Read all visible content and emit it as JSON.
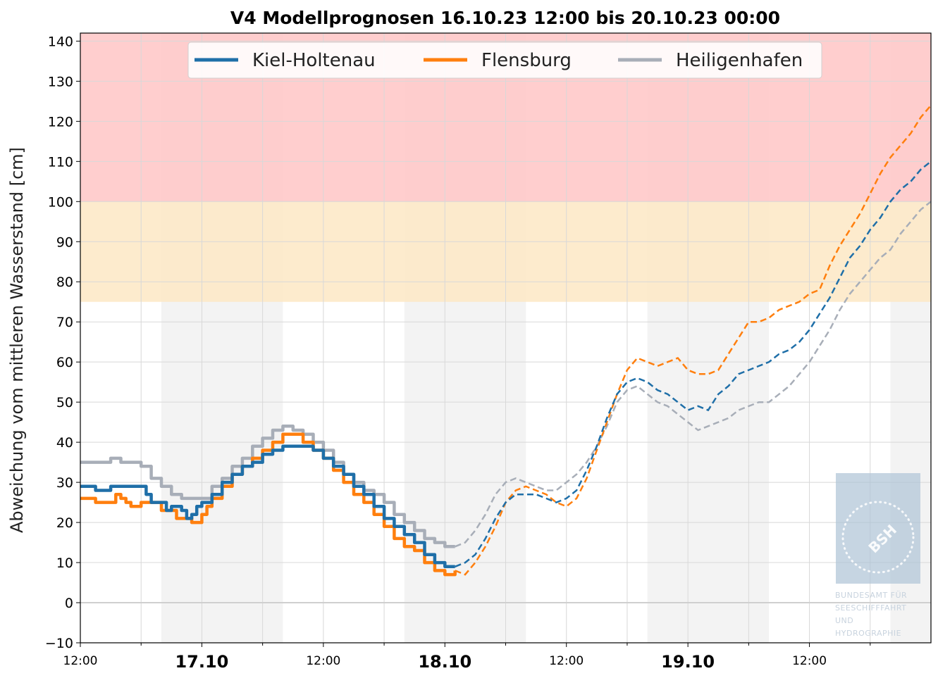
{
  "chart_data": {
    "type": "line",
    "title": "V4 Modellprognosen 16.10.23 12:00 bis 20.10.23 00:00",
    "xlabel": "",
    "ylabel": "Abweichung vom mittleren Wasserstand [cm]",
    "x_unit": "hours since 16.10.23 12:00",
    "xlim": [
      0,
      84
    ],
    "ylim": [
      -10,
      142
    ],
    "yticks": [
      -10,
      0,
      10,
      20,
      30,
      40,
      50,
      60,
      70,
      80,
      90,
      100,
      110,
      120,
      130,
      140
    ],
    "ytick_labels": [
      "−10",
      "0",
      "10",
      "20",
      "30",
      "40",
      "50",
      "60",
      "70",
      "80",
      "90",
      "100",
      "110",
      "120",
      "130",
      "140"
    ],
    "xticks": [
      {
        "x": 0,
        "label": "12:00",
        "bold": false
      },
      {
        "x": 12,
        "label": "17.10",
        "bold": true
      },
      {
        "x": 24,
        "label": "12:00",
        "bold": false
      },
      {
        "x": 36,
        "label": "18.10",
        "bold": true
      },
      {
        "x": 48,
        "label": "12:00",
        "bold": false
      },
      {
        "x": 60,
        "label": "19.10",
        "bold": true
      },
      {
        "x": 72,
        "label": "12:00",
        "bold": false
      }
    ],
    "minor_xticks": [
      6,
      18,
      30,
      42,
      54,
      66,
      78
    ],
    "grid": true,
    "bands": [
      {
        "from": 100,
        "to": 142,
        "color": "#ffc6c6"
      },
      {
        "from": 75,
        "to": 100,
        "color": "#fde8c4"
      }
    ],
    "night_shading": [
      [
        8,
        20
      ],
      [
        32,
        44
      ],
      [
        56,
        68
      ],
      [
        80,
        84
      ]
    ],
    "now_x": 35.0,
    "legend": {
      "position": "top-center",
      "entries": [
        "Kiel-Holtenau",
        "Flensburg",
        "Heiligenhafen"
      ]
    },
    "series": [
      {
        "name": "Kiel-Holtenau",
        "color": "#1f6fa8",
        "observed": [
          [
            0,
            29
          ],
          [
            1,
            29
          ],
          [
            1.5,
            28
          ],
          [
            2.5,
            28
          ],
          [
            3,
            29
          ],
          [
            6,
            29
          ],
          [
            6.5,
            27
          ],
          [
            7,
            25
          ],
          [
            8,
            25
          ],
          [
            8.5,
            23
          ],
          [
            9,
            24
          ],
          [
            10,
            23
          ],
          [
            10.5,
            21
          ],
          [
            11,
            22
          ],
          [
            11.5,
            24
          ],
          [
            12,
            25
          ],
          [
            13,
            27
          ],
          [
            14,
            30
          ],
          [
            15,
            32
          ],
          [
            16,
            34
          ],
          [
            17,
            35
          ],
          [
            18,
            37
          ],
          [
            19,
            38
          ],
          [
            20,
            39
          ],
          [
            22,
            39
          ],
          [
            23,
            38
          ],
          [
            24,
            36
          ],
          [
            25,
            34
          ],
          [
            26,
            32
          ],
          [
            27,
            29
          ],
          [
            28,
            27
          ],
          [
            29,
            24
          ],
          [
            30,
            21
          ],
          [
            31,
            19
          ],
          [
            32,
            17
          ],
          [
            33,
            15
          ],
          [
            34,
            12
          ],
          [
            35,
            10
          ],
          [
            36,
            9
          ],
          [
            37,
            9
          ]
        ],
        "forecast": [
          [
            37,
            9
          ],
          [
            38,
            10
          ],
          [
            39,
            12
          ],
          [
            40,
            16
          ],
          [
            41,
            21
          ],
          [
            42,
            25
          ],
          [
            43,
            27
          ],
          [
            44,
            27
          ],
          [
            45,
            27
          ],
          [
            46,
            26
          ],
          [
            47,
            25
          ],
          [
            48,
            26
          ],
          [
            49,
            28
          ],
          [
            50,
            33
          ],
          [
            51,
            39
          ],
          [
            52,
            46
          ],
          [
            53,
            52
          ],
          [
            54,
            55
          ],
          [
            55,
            56
          ],
          [
            56,
            55
          ],
          [
            57,
            53
          ],
          [
            58,
            52
          ],
          [
            59,
            50
          ],
          [
            60,
            48
          ],
          [
            61,
            49
          ],
          [
            62,
            48
          ],
          [
            63,
            52
          ],
          [
            64,
            54
          ],
          [
            65,
            57
          ],
          [
            66,
            58
          ],
          [
            67,
            59
          ],
          [
            68,
            60
          ],
          [
            69,
            62
          ],
          [
            70,
            63
          ],
          [
            71,
            65
          ],
          [
            72,
            68
          ],
          [
            73,
            72
          ],
          [
            74,
            76
          ],
          [
            75,
            81
          ],
          [
            76,
            86
          ],
          [
            77,
            89
          ],
          [
            78,
            93
          ],
          [
            79,
            96
          ],
          [
            80,
            100
          ],
          [
            81,
            103
          ],
          [
            82,
            105
          ],
          [
            83,
            108
          ],
          [
            84,
            110
          ]
        ]
      },
      {
        "name": "Flensburg",
        "color": "#ff7f0e",
        "observed": [
          [
            0,
            26
          ],
          [
            1,
            26
          ],
          [
            1.5,
            25
          ],
          [
            3,
            25
          ],
          [
            3.5,
            27
          ],
          [
            4,
            26
          ],
          [
            4.5,
            25
          ],
          [
            5,
            24
          ],
          [
            6,
            25
          ],
          [
            7,
            25
          ],
          [
            8,
            23
          ],
          [
            9,
            23
          ],
          [
            9.5,
            21
          ],
          [
            10,
            21
          ],
          [
            11,
            20
          ],
          [
            12,
            22
          ],
          [
            12.5,
            24
          ],
          [
            13,
            26
          ],
          [
            14,
            29
          ],
          [
            15,
            32
          ],
          [
            16,
            34
          ],
          [
            17,
            36
          ],
          [
            18,
            38
          ],
          [
            19,
            40
          ],
          [
            20,
            42
          ],
          [
            21,
            42
          ],
          [
            22,
            40
          ],
          [
            23,
            38
          ],
          [
            24,
            36
          ],
          [
            25,
            33
          ],
          [
            26,
            30
          ],
          [
            27,
            27
          ],
          [
            28,
            25
          ],
          [
            29,
            22
          ],
          [
            30,
            19
          ],
          [
            31,
            16
          ],
          [
            32,
            14
          ],
          [
            33,
            13
          ],
          [
            34,
            10
          ],
          [
            35,
            8
          ],
          [
            36,
            7
          ],
          [
            37,
            8
          ]
        ],
        "forecast": [
          [
            37,
            8
          ],
          [
            38,
            7
          ],
          [
            39,
            10
          ],
          [
            40,
            14
          ],
          [
            41,
            19
          ],
          [
            42,
            25
          ],
          [
            43,
            28
          ],
          [
            44,
            29
          ],
          [
            45,
            28
          ],
          [
            46,
            27
          ],
          [
            47,
            25
          ],
          [
            48,
            24
          ],
          [
            49,
            26
          ],
          [
            50,
            31
          ],
          [
            51,
            38
          ],
          [
            52,
            45
          ],
          [
            53,
            52
          ],
          [
            54,
            58
          ],
          [
            55,
            61
          ],
          [
            56,
            60
          ],
          [
            57,
            59
          ],
          [
            58,
            60
          ],
          [
            59,
            61
          ],
          [
            60,
            58
          ],
          [
            61,
            57
          ],
          [
            62,
            57
          ],
          [
            63,
            58
          ],
          [
            64,
            62
          ],
          [
            65,
            66
          ],
          [
            66,
            70
          ],
          [
            67,
            70
          ],
          [
            68,
            71
          ],
          [
            69,
            73
          ],
          [
            70,
            74
          ],
          [
            71,
            75
          ],
          [
            72,
            77
          ],
          [
            73,
            78
          ],
          [
            74,
            84
          ],
          [
            75,
            89
          ],
          [
            76,
            93
          ],
          [
            77,
            97
          ],
          [
            78,
            102
          ],
          [
            79,
            107
          ],
          [
            80,
            111
          ],
          [
            81,
            114
          ],
          [
            82,
            117
          ],
          [
            83,
            121
          ],
          [
            84,
            124
          ]
        ]
      },
      {
        "name": "Heiligenhafen",
        "color": "#a8aeb8",
        "observed": [
          [
            0,
            35
          ],
          [
            1,
            35
          ],
          [
            2,
            35
          ],
          [
            3,
            36
          ],
          [
            4,
            35
          ],
          [
            5,
            35
          ],
          [
            6,
            34
          ],
          [
            7,
            31
          ],
          [
            8,
            29
          ],
          [
            9,
            27
          ],
          [
            10,
            26
          ],
          [
            11,
            26
          ],
          [
            12,
            26
          ],
          [
            13,
            29
          ],
          [
            14,
            31
          ],
          [
            15,
            34
          ],
          [
            16,
            36
          ],
          [
            17,
            39
          ],
          [
            18,
            41
          ],
          [
            19,
            43
          ],
          [
            20,
            44
          ],
          [
            21,
            43
          ],
          [
            22,
            42
          ],
          [
            23,
            40
          ],
          [
            24,
            38
          ],
          [
            25,
            35
          ],
          [
            26,
            32
          ],
          [
            27,
            30
          ],
          [
            28,
            28
          ],
          [
            29,
            27
          ],
          [
            30,
            25
          ],
          [
            31,
            22
          ],
          [
            32,
            20
          ],
          [
            33,
            18
          ],
          [
            34,
            16
          ],
          [
            35,
            15
          ],
          [
            36,
            14
          ],
          [
            37,
            14
          ]
        ],
        "forecast": [
          [
            37,
            14
          ],
          [
            38,
            15
          ],
          [
            39,
            18
          ],
          [
            40,
            22
          ],
          [
            41,
            27
          ],
          [
            42,
            30
          ],
          [
            43,
            31
          ],
          [
            44,
            30
          ],
          [
            45,
            29
          ],
          [
            46,
            28
          ],
          [
            47,
            28
          ],
          [
            48,
            30
          ],
          [
            49,
            32
          ],
          [
            50,
            35
          ],
          [
            51,
            39
          ],
          [
            52,
            44
          ],
          [
            53,
            50
          ],
          [
            54,
            53
          ],
          [
            55,
            54
          ],
          [
            56,
            52
          ],
          [
            57,
            50
          ],
          [
            58,
            49
          ],
          [
            59,
            47
          ],
          [
            60,
            45
          ],
          [
            61,
            43
          ],
          [
            62,
            44
          ],
          [
            63,
            45
          ],
          [
            64,
            46
          ],
          [
            65,
            48
          ],
          [
            66,
            49
          ],
          [
            67,
            50
          ],
          [
            68,
            50
          ],
          [
            69,
            52
          ],
          [
            70,
            54
          ],
          [
            71,
            57
          ],
          [
            72,
            60
          ],
          [
            73,
            64
          ],
          [
            74,
            68
          ],
          [
            75,
            73
          ],
          [
            76,
            77
          ],
          [
            77,
            80
          ],
          [
            78,
            83
          ],
          [
            79,
            86
          ],
          [
            80,
            88
          ],
          [
            81,
            92
          ],
          [
            82,
            95
          ],
          [
            83,
            98
          ],
          [
            84,
            100
          ]
        ]
      }
    ]
  },
  "logo": {
    "mark": "BSH",
    "lines": [
      "BUNDESAMT FÜR",
      "SEESCHIFFFAHRT",
      "UND",
      "HYDROGRAPHIE"
    ]
  }
}
